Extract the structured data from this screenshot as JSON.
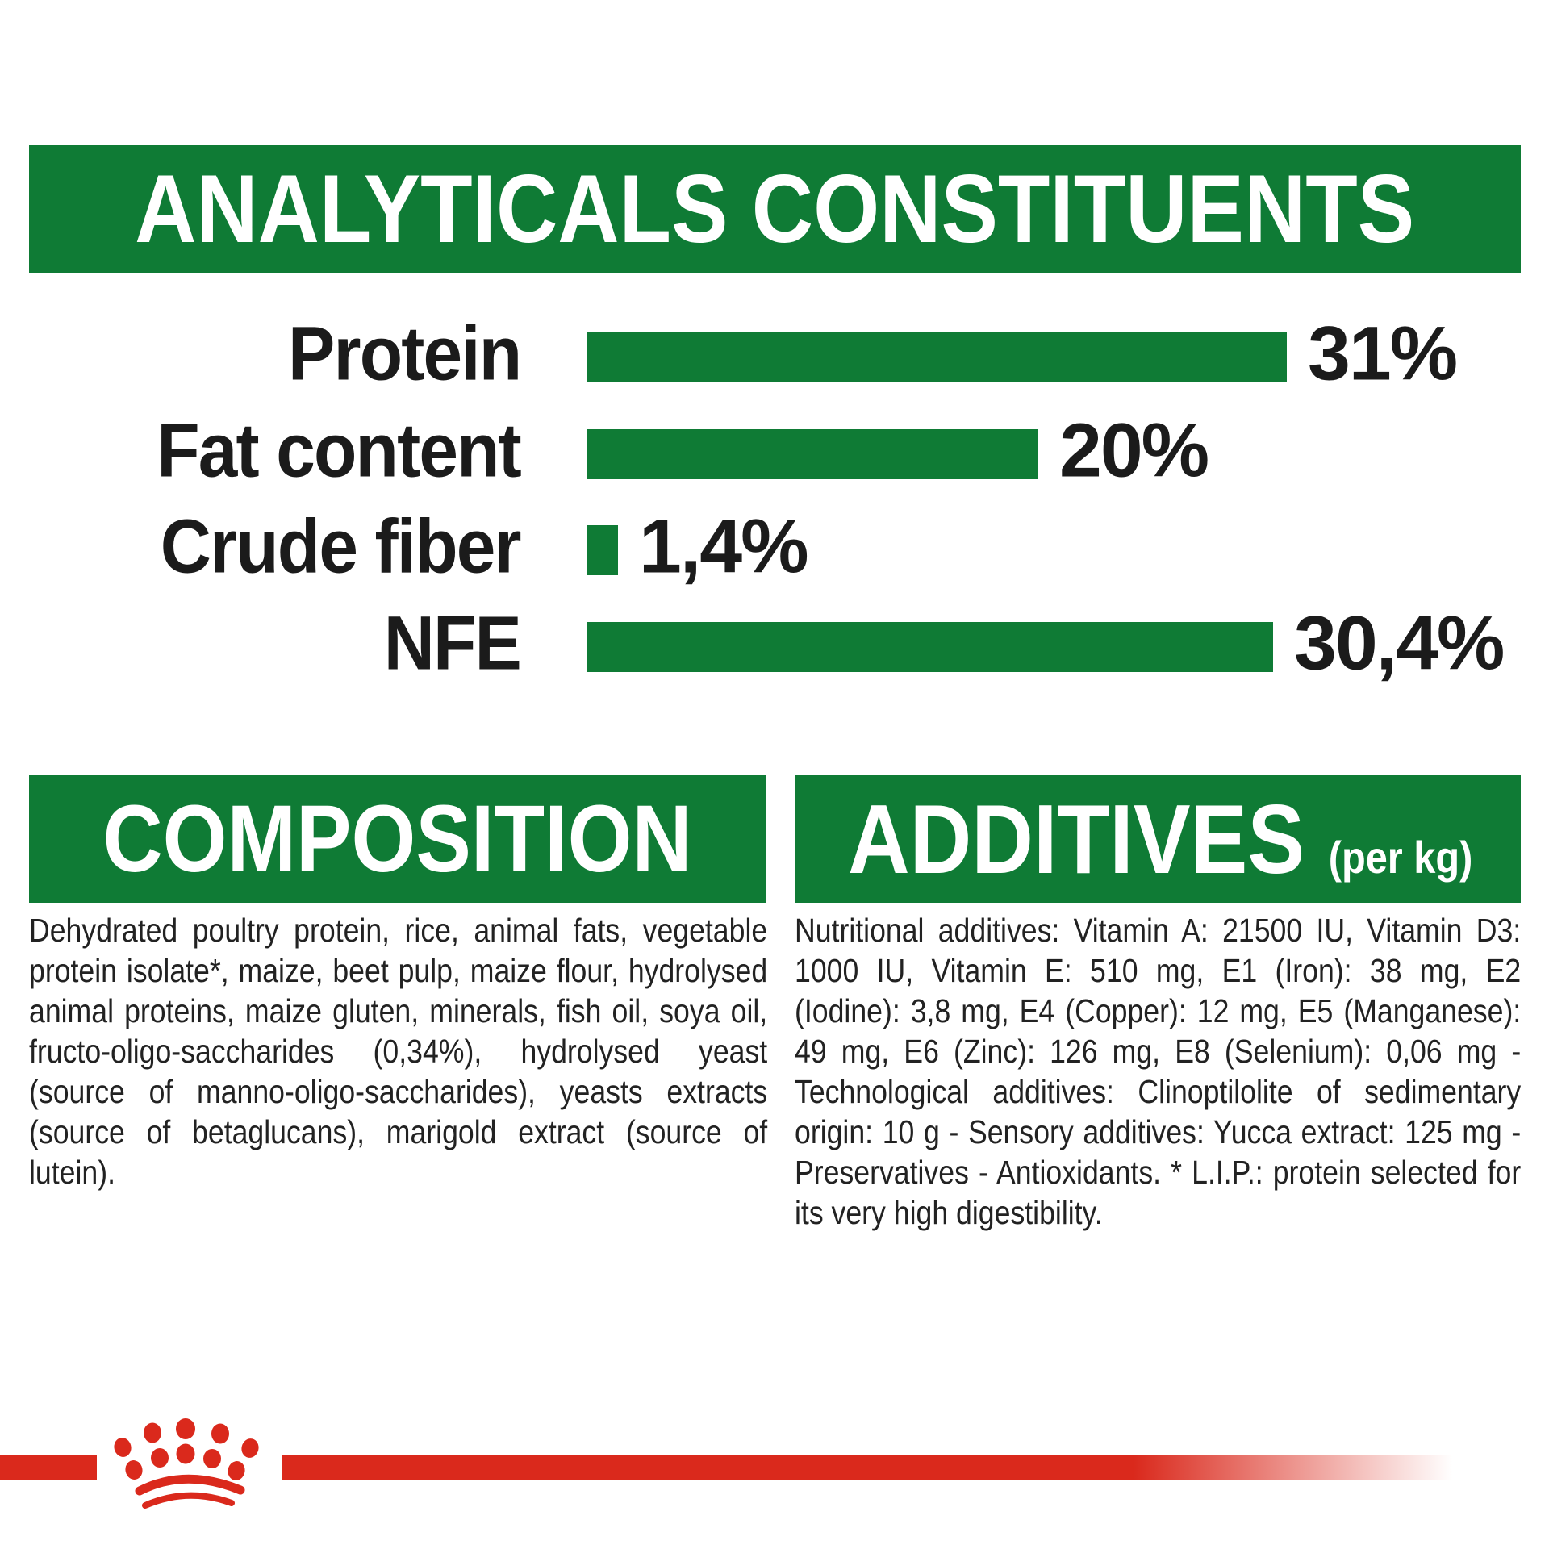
{
  "colors": {
    "green": "#0F7B35",
    "red": "#DA291C",
    "text": "#1b1b1b",
    "banner_text": "#ffffff"
  },
  "header": {
    "title": "ANALYTICALS CONSTITUENTS"
  },
  "chart_data": {
    "type": "bar",
    "orientation": "horizontal",
    "title": "ANALYTICALS CONSTITUENTS",
    "categories": [
      "Protein",
      "Fat content",
      "Crude fiber",
      "NFE"
    ],
    "values": [
      31,
      20,
      1.4,
      30.4
    ],
    "value_labels": [
      "31%",
      "20%",
      "1,4%",
      "30,4%"
    ],
    "unit": "%",
    "xlim": [
      0,
      33
    ],
    "grid": false,
    "bar_color": "#0F7B35",
    "label_color": "#1b1b1b"
  },
  "composition": {
    "title": "COMPOSITION",
    "body": "Dehydrated poultry protein, rice, animal fats, vegetable protein isolate*, maize, beet pulp, maize flour, hydrolysed animal proteins, maize gluten, minerals, fish oil, soya oil, fructo-oligo-saccharides (0,34%), hydrolysed yeast (source of manno-oligo-saccharides), yeasts extracts (source of betaglucans), marigold extract (source of lutein)."
  },
  "additives": {
    "title": "ADDITIVES",
    "title_suffix": "(per kg)",
    "body": "Nutritional additives: Vitamin A: 21500 IU, Vitamin D3: 1000 IU, Vitamin E: 510 mg, E1 (Iron): 38 mg, E2 (Iodine): 3,8 mg, E4 (Copper): 12 mg, E5 (Manganese): 49 mg, E6 (Zinc): 126 mg, E8 (Selenium): 0,06 mg - Technological additives: Clinoptilolite of sedimentary origin: 10 g - Sensory additives: Yucca extract: 125 mg - Preservatives - Antioxidants. * L.I.P.: protein selected for its very high digestibility."
  },
  "footer": {
    "logo": "royal-canin-crown-paw"
  }
}
